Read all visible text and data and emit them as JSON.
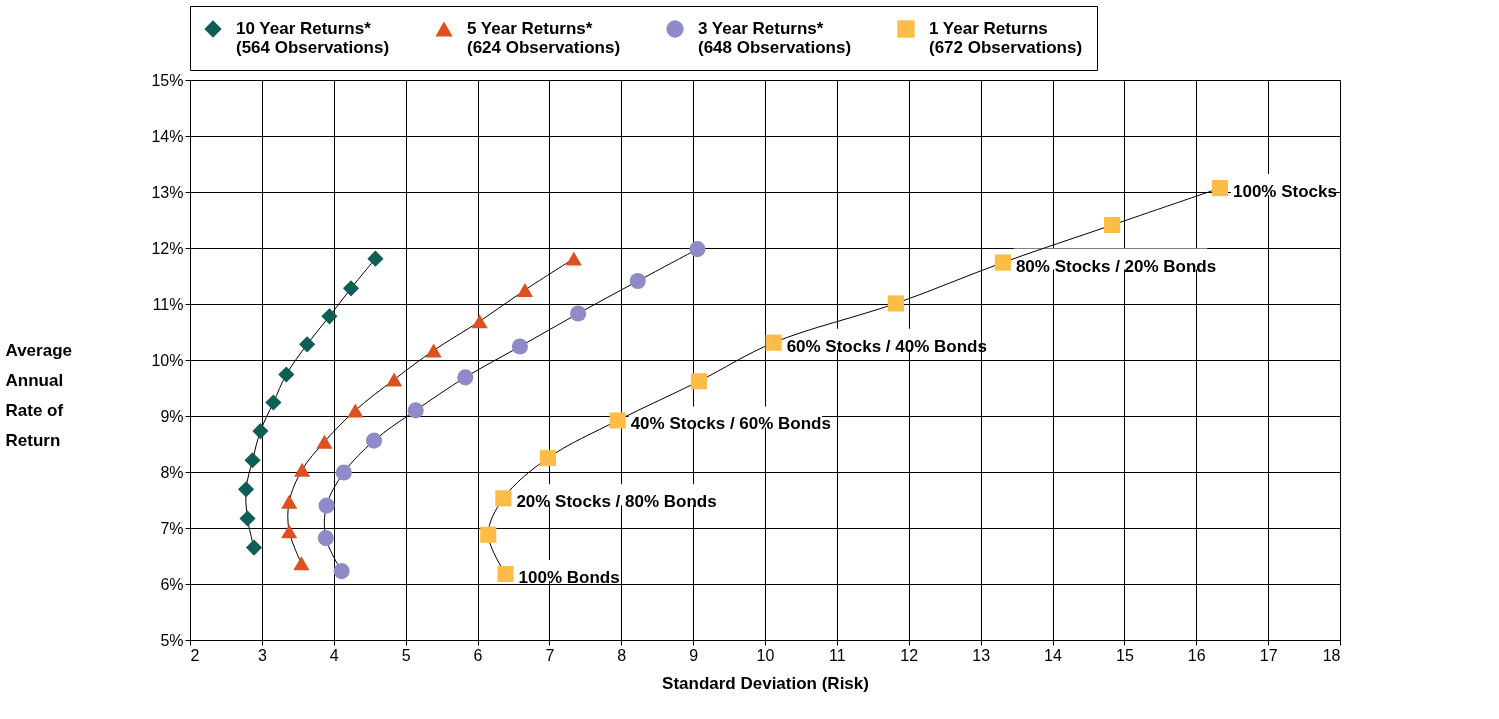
{
  "chart_data": {
    "type": "line",
    "xlabel": "Standard Deviation (Risk)",
    "ylabel": "Average\nAnnual\nRate of\nReturn",
    "xlim": [
      2,
      18
    ],
    "xticks": [
      2,
      3,
      4,
      5,
      6,
      7,
      8,
      9,
      10,
      11,
      12,
      13,
      14,
      15,
      16,
      17,
      18
    ],
    "ylim": [
      5,
      15
    ],
    "yticks": [
      {
        "value": 5,
        "label": "5%"
      },
      {
        "value": 6,
        "label": "6%"
      },
      {
        "value": 7,
        "label": "7%"
      },
      {
        "value": 8,
        "label": "8%"
      },
      {
        "value": 9,
        "label": "9%"
      },
      {
        "value": 10,
        "label": "10%"
      },
      {
        "value": 11,
        "label": "11%"
      },
      {
        "value": 12,
        "label": "12%"
      },
      {
        "value": 13,
        "label": "13%"
      },
      {
        "value": 14,
        "label": "14%"
      },
      {
        "value": 15,
        "label": "15%"
      }
    ],
    "grid": true,
    "legend": "top",
    "series": [
      {
        "name": "10 Year Returns*\n(564 Observations)",
        "color": "#0e5e55",
        "marker": "diamond",
        "x": [
          2.89,
          2.8,
          2.78,
          2.87,
          2.98,
          3.16,
          3.34,
          3.63,
          3.94,
          4.24,
          4.58
        ],
        "values": [
          6.65,
          7.17,
          7.69,
          8.21,
          8.73,
          9.24,
          9.74,
          10.28,
          10.78,
          11.28,
          11.81
        ]
      },
      {
        "name": "5 Year Returns*\n(624 Observations)",
        "color": "#dd5120",
        "marker": "triangle",
        "x": [
          3.55,
          3.38,
          3.38,
          3.56,
          3.87,
          4.3,
          4.84,
          5.39,
          6.03,
          6.66,
          7.34
        ],
        "values": [
          6.37,
          6.94,
          7.47,
          8.04,
          8.54,
          9.1,
          9.65,
          10.17,
          10.69,
          11.25,
          11.81
        ]
      },
      {
        "name": "3 Year Returns*\n(648 Observations)",
        "color": "#8f8ac8",
        "marker": "circle",
        "x": [
          4.11,
          3.89,
          3.9,
          4.14,
          4.56,
          5.14,
          5.83,
          6.59,
          7.4,
          8.23,
          9.06
        ],
        "values": [
          6.23,
          6.82,
          7.4,
          7.99,
          8.56,
          9.1,
          9.69,
          10.24,
          10.83,
          11.41,
          11.98
        ]
      },
      {
        "name": "1 Year Returns\n(672 Observations)",
        "color": "#fbbd45",
        "marker": "square",
        "x": [
          6.39,
          6.15,
          6.36,
          6.98,
          7.95,
          9.08,
          10.12,
          11.82,
          13.31,
          14.83,
          16.33
        ],
        "values": [
          6.18,
          6.88,
          7.53,
          8.25,
          8.92,
          9.62,
          10.31,
          11.01,
          11.74,
          12.41,
          13.07
        ]
      }
    ],
    "annotations": [
      {
        "text": "100% Bonds",
        "x": 6.39,
        "y": 6.18
      },
      {
        "text": "20% Stocks / 80% Bonds",
        "x": 6.36,
        "y": 7.53
      },
      {
        "text": "40% Stocks / 60% Bonds",
        "x": 7.95,
        "y": 8.92
      },
      {
        "text": "60% Stocks / 40% Bonds",
        "x": 10.12,
        "y": 10.31
      },
      {
        "text": "80% Stocks / 20% Bonds",
        "x": 13.31,
        "y": 11.74
      },
      {
        "text": "100% Stocks",
        "x": 16.33,
        "y": 13.07
      }
    ]
  }
}
